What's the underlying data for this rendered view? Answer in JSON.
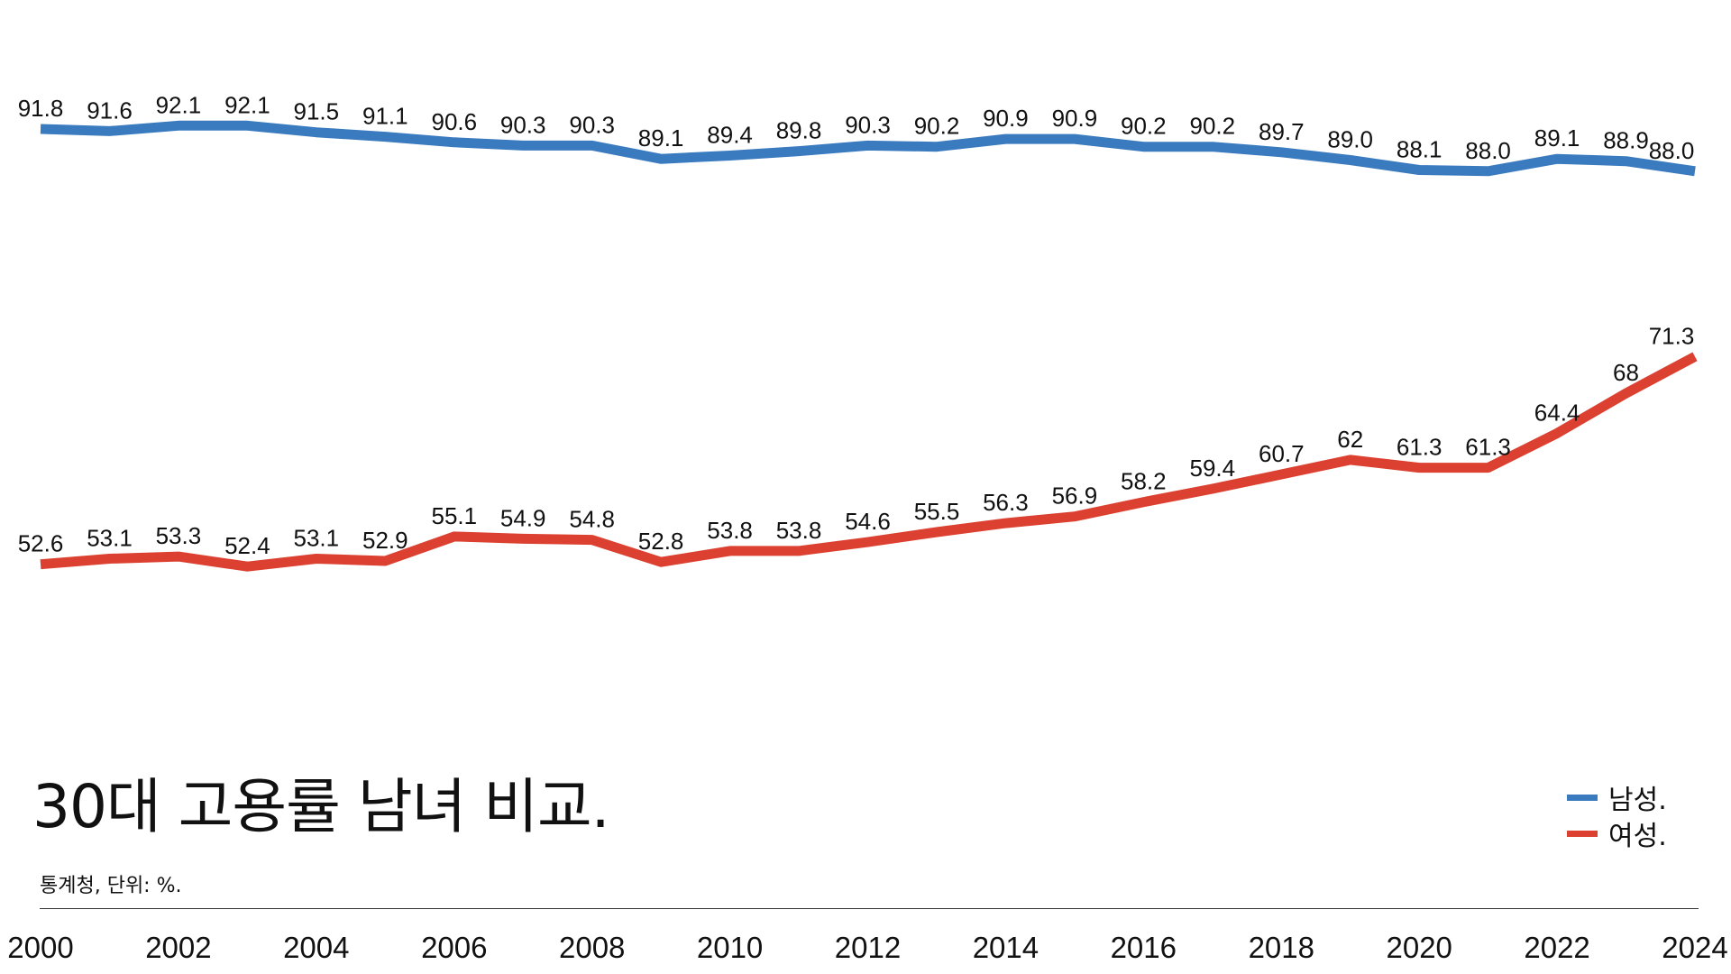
{
  "chart_data": {
    "type": "line",
    "title": "30대 고용률 남녀 비교.",
    "subtitle": "통계청, 단위: %.",
    "xlabel": "",
    "ylabel": "",
    "x": [
      2000,
      2001,
      2002,
      2003,
      2004,
      2005,
      2006,
      2007,
      2008,
      2009,
      2010,
      2011,
      2012,
      2013,
      2014,
      2015,
      2016,
      2017,
      2018,
      2019,
      2020,
      2021,
      2022,
      2023,
      2024
    ],
    "x_tick_labels": [
      "2000",
      "2002",
      "2004",
      "2006",
      "2008",
      "2010",
      "2012",
      "2014",
      "2016",
      "2018",
      "2020",
      "2022",
      "2024"
    ],
    "ylim": [
      30,
      100
    ],
    "grid": false,
    "legend_position": "bottom-right",
    "series": [
      {
        "name": "남성.",
        "color": "#3a7abf",
        "values": [
          91.8,
          91.6,
          92.1,
          92.1,
          91.5,
          91.1,
          90.6,
          90.3,
          90.3,
          89.1,
          89.4,
          89.8,
          90.3,
          90.2,
          90.9,
          90.9,
          90.2,
          90.2,
          89.7,
          89.0,
          88.1,
          88.0,
          89.1,
          88.9,
          88.0
        ],
        "labels": [
          "91.8",
          "91.6",
          "92.1",
          "92.1",
          "91.5",
          "91.1",
          "90.6",
          "90.3",
          "90.3",
          "89.1",
          "89.4",
          "89.8",
          "90.3",
          "90.2",
          "90.9",
          "90.9",
          "90.2",
          "90.2",
          "89.7",
          "89.0",
          "88.1",
          "88.0",
          "89.1",
          "88.9",
          "88.0"
        ]
      },
      {
        "name": "여성.",
        "color": "#db4030",
        "values": [
          52.6,
          53.1,
          53.3,
          52.4,
          53.1,
          52.9,
          55.1,
          54.9,
          54.8,
          52.8,
          53.8,
          53.8,
          54.6,
          55.5,
          56.3,
          56.9,
          58.2,
          59.4,
          60.7,
          62,
          61.3,
          61.3,
          64.4,
          68,
          71.3
        ],
        "labels": [
          "52.6",
          "53.1",
          "53.3",
          "52.4",
          "53.1",
          "52.9",
          "55.1",
          "54.9",
          "54.8",
          "52.8",
          "53.8",
          "53.8",
          "54.6",
          "55.5",
          "56.3",
          "56.9",
          "58.2",
          "59.4",
          "60.7",
          "62",
          "61.3",
          "61.3",
          "64.4",
          "68",
          "71.3"
        ]
      }
    ]
  }
}
